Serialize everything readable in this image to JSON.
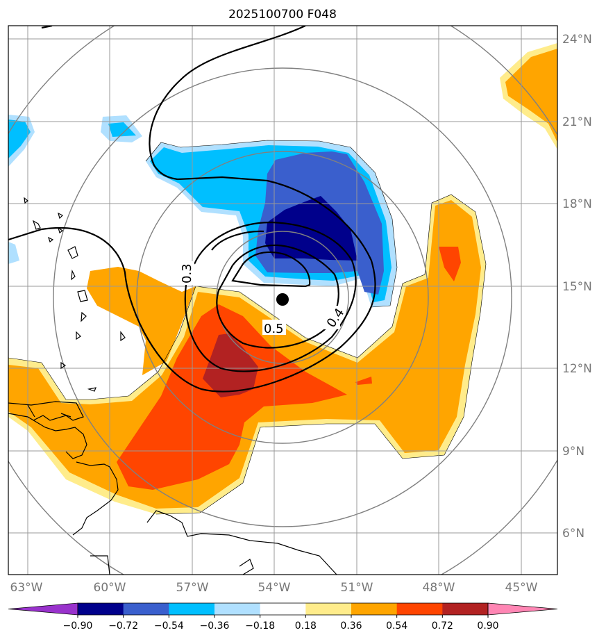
{
  "title": "2025100700 F048",
  "lon_labels": [
    "63°W",
    "60°W",
    "57°W",
    "54°W",
    "51°W",
    "48°W",
    "45°W"
  ],
  "lat_labels": [
    "24°N",
    "21°N",
    "18°N",
    "15°N",
    "12°N",
    "9°N",
    "6°N"
  ],
  "contour_labels": [
    "0.3",
    "0.5",
    "0.4"
  ],
  "colorbar": {
    "ticks": [
      "−0.90",
      "−0.72",
      "−0.54",
      "−0.36",
      "−0.18",
      "0.18",
      "0.36",
      "0.54",
      "0.72",
      "0.90"
    ],
    "colors": [
      "#9932cc",
      "#00008b",
      "#3a5fcd",
      "#00bfff",
      "#b0e0ff",
      "#ffffff",
      "#ffec8b",
      "#ffa500",
      "#ff4500",
      "#b22222",
      "#ff86b4"
    ]
  },
  "palette": {
    "dark_blue": "#00008b",
    "mid_blue": "#3a5fcd",
    "sky_blue": "#00bfff",
    "light_blue": "#b0e0ff",
    "light_yellow": "#ffec8b",
    "orange": "#ffa500",
    "red_orange": "#ff4500",
    "dark_red": "#b22222"
  },
  "storm_center": {
    "lon": -53.9,
    "lat": 14.5
  }
}
